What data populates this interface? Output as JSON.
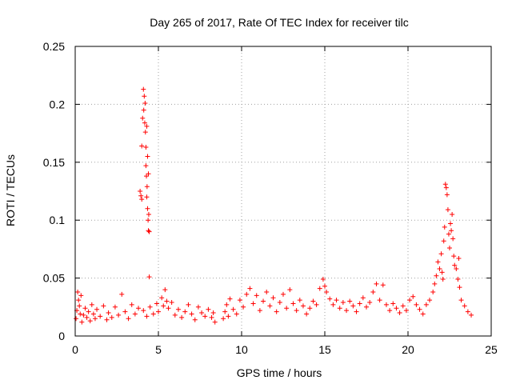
{
  "chart_data": {
    "type": "scatter",
    "title": "Day 265 of 2017, Rate Of TEC Index for receiver tilc",
    "xlabel": "GPS time / hours",
    "ylabel": "ROTI / TECUs",
    "xlim": [
      0,
      25
    ],
    "ylim": [
      0,
      0.25
    ],
    "xticks": [
      0,
      5,
      10,
      15,
      20,
      25
    ],
    "xtick_labels": [
      "0",
      "5",
      "10",
      "15",
      "20",
      "25"
    ],
    "yticks": [
      0,
      0.05,
      0.1,
      0.15,
      0.2,
      0.25
    ],
    "ytick_labels": [
      "0",
      "0.05",
      "0.1",
      "0.15",
      "0.2",
      "0.25"
    ],
    "grid": true,
    "marker": "plus",
    "color": "#ff0000",
    "series": [
      {
        "name": "ROTI",
        "points": [
          [
            0.05,
            0.015
          ],
          [
            0.1,
            0.022
          ],
          [
            0.15,
            0.038
          ],
          [
            0.2,
            0.031
          ],
          [
            0.25,
            0.026
          ],
          [
            0.3,
            0.019
          ],
          [
            0.35,
            0.035
          ],
          [
            0.4,
            0.012
          ],
          [
            0.5,
            0.018
          ],
          [
            0.6,
            0.024
          ],
          [
            0.7,
            0.016
          ],
          [
            0.8,
            0.021
          ],
          [
            0.9,
            0.013
          ],
          [
            1.0,
            0.027
          ],
          [
            1.1,
            0.019
          ],
          [
            1.2,
            0.015
          ],
          [
            1.3,
            0.023
          ],
          [
            1.5,
            0.017
          ],
          [
            1.7,
            0.026
          ],
          [
            1.9,
            0.014
          ],
          [
            2.0,
            0.02
          ],
          [
            2.2,
            0.016
          ],
          [
            2.4,
            0.025
          ],
          [
            2.6,
            0.018
          ],
          [
            2.8,
            0.036
          ],
          [
            3.0,
            0.021
          ],
          [
            3.2,
            0.015
          ],
          [
            3.4,
            0.027
          ],
          [
            3.6,
            0.019
          ],
          [
            3.8,
            0.024
          ],
          [
            3.9,
            0.125
          ],
          [
            3.95,
            0.121
          ],
          [
            4.0,
            0.118
          ],
          [
            4.0,
            0.164
          ],
          [
            4.05,
            0.188
          ],
          [
            4.1,
            0.213
          ],
          [
            4.12,
            0.195
          ],
          [
            4.15,
            0.207
          ],
          [
            4.18,
            0.184
          ],
          [
            4.2,
            0.201
          ],
          [
            4.22,
            0.176
          ],
          [
            4.25,
            0.163
          ],
          [
            4.25,
            0.147
          ],
          [
            4.28,
            0.138
          ],
          [
            4.3,
            0.181
          ],
          [
            4.3,
            0.12
          ],
          [
            4.32,
            0.129
          ],
          [
            4.35,
            0.155
          ],
          [
            4.35,
            0.11
          ],
          [
            4.38,
            0.1
          ],
          [
            4.4,
            0.091
          ],
          [
            4.4,
            0.14
          ],
          [
            4.42,
            0.105
          ],
          [
            4.45,
            0.09
          ],
          [
            4.45,
            0.051
          ],
          [
            4.1,
            0.022
          ],
          [
            4.3,
            0.017
          ],
          [
            4.5,
            0.025
          ],
          [
            4.7,
            0.019
          ],
          [
            4.9,
            0.028
          ],
          [
            5.0,
            0.021
          ],
          [
            5.2,
            0.033
          ],
          [
            5.3,
            0.026
          ],
          [
            5.4,
            0.04
          ],
          [
            5.5,
            0.03
          ],
          [
            5.6,
            0.024
          ],
          [
            5.8,
            0.029
          ],
          [
            6.0,
            0.018
          ],
          [
            6.2,
            0.023
          ],
          [
            6.4,
            0.016
          ],
          [
            6.6,
            0.021
          ],
          [
            6.8,
            0.027
          ],
          [
            7.0,
            0.019
          ],
          [
            7.2,
            0.014
          ],
          [
            7.4,
            0.025
          ],
          [
            7.6,
            0.02
          ],
          [
            7.8,
            0.017
          ],
          [
            8.0,
            0.023
          ],
          [
            8.2,
            0.016
          ],
          [
            8.3,
            0.02
          ],
          [
            8.4,
            0.012
          ],
          [
            8.9,
            0.015
          ],
          [
            9.0,
            0.021
          ],
          [
            9.1,
            0.027
          ],
          [
            9.2,
            0.017
          ],
          [
            9.3,
            0.032
          ],
          [
            9.5,
            0.023
          ],
          [
            9.7,
            0.019
          ],
          [
            9.9,
            0.031
          ],
          [
            10.1,
            0.025
          ],
          [
            10.3,
            0.036
          ],
          [
            10.5,
            0.041
          ],
          [
            10.7,
            0.028
          ],
          [
            10.9,
            0.035
          ],
          [
            11.1,
            0.022
          ],
          [
            11.3,
            0.03
          ],
          [
            11.5,
            0.038
          ],
          [
            11.7,
            0.026
          ],
          [
            11.9,
            0.033
          ],
          [
            12.1,
            0.021
          ],
          [
            12.3,
            0.029
          ],
          [
            12.5,
            0.036
          ],
          [
            12.7,
            0.024
          ],
          [
            12.9,
            0.04
          ],
          [
            13.1,
            0.028
          ],
          [
            13.3,
            0.022
          ],
          [
            13.5,
            0.031
          ],
          [
            13.7,
            0.026
          ],
          [
            13.9,
            0.019
          ],
          [
            14.1,
            0.024
          ],
          [
            14.3,
            0.03
          ],
          [
            14.5,
            0.027
          ],
          [
            14.7,
            0.041
          ],
          [
            14.9,
            0.049
          ],
          [
            15.0,
            0.043
          ],
          [
            15.1,
            0.038
          ],
          [
            15.3,
            0.032
          ],
          [
            15.5,
            0.027
          ],
          [
            15.7,
            0.031
          ],
          [
            15.9,
            0.024
          ],
          [
            16.1,
            0.029
          ],
          [
            16.3,
            0.022
          ],
          [
            16.5,
            0.03
          ],
          [
            16.7,
            0.026
          ],
          [
            16.9,
            0.021
          ],
          [
            17.1,
            0.028
          ],
          [
            17.3,
            0.033
          ],
          [
            17.5,
            0.025
          ],
          [
            17.7,
            0.029
          ],
          [
            17.9,
            0.038
          ],
          [
            18.1,
            0.045
          ],
          [
            18.3,
            0.031
          ],
          [
            18.5,
            0.044
          ],
          [
            18.7,
            0.027
          ],
          [
            18.9,
            0.022
          ],
          [
            19.1,
            0.028
          ],
          [
            19.3,
            0.024
          ],
          [
            19.5,
            0.02
          ],
          [
            19.7,
            0.026
          ],
          [
            19.9,
            0.022
          ],
          [
            20.1,
            0.031
          ],
          [
            20.3,
            0.034
          ],
          [
            20.5,
            0.027
          ],
          [
            20.7,
            0.023
          ],
          [
            20.9,
            0.019
          ],
          [
            21.1,
            0.027
          ],
          [
            21.3,
            0.031
          ],
          [
            21.5,
            0.038
          ],
          [
            21.6,
            0.045
          ],
          [
            21.7,
            0.052
          ],
          [
            21.8,
            0.064
          ],
          [
            21.9,
            0.058
          ],
          [
            22.0,
            0.071
          ],
          [
            22.05,
            0.055
          ],
          [
            22.1,
            0.049
          ],
          [
            22.15,
            0.082
          ],
          [
            22.2,
            0.094
          ],
          [
            22.25,
            0.131
          ],
          [
            22.3,
            0.128
          ],
          [
            22.35,
            0.122
          ],
          [
            22.4,
            0.109
          ],
          [
            22.45,
            0.088
          ],
          [
            22.5,
            0.076
          ],
          [
            22.55,
            0.097
          ],
          [
            22.6,
            0.091
          ],
          [
            22.65,
            0.105
          ],
          [
            22.7,
            0.084
          ],
          [
            22.75,
            0.069
          ],
          [
            22.8,
            0.061
          ],
          [
            22.9,
            0.058
          ],
          [
            23.0,
            0.049
          ],
          [
            23.05,
            0.067
          ],
          [
            23.1,
            0.042
          ],
          [
            23.2,
            0.031
          ],
          [
            23.4,
            0.026
          ],
          [
            23.6,
            0.021
          ],
          [
            23.8,
            0.018
          ]
        ]
      }
    ]
  }
}
